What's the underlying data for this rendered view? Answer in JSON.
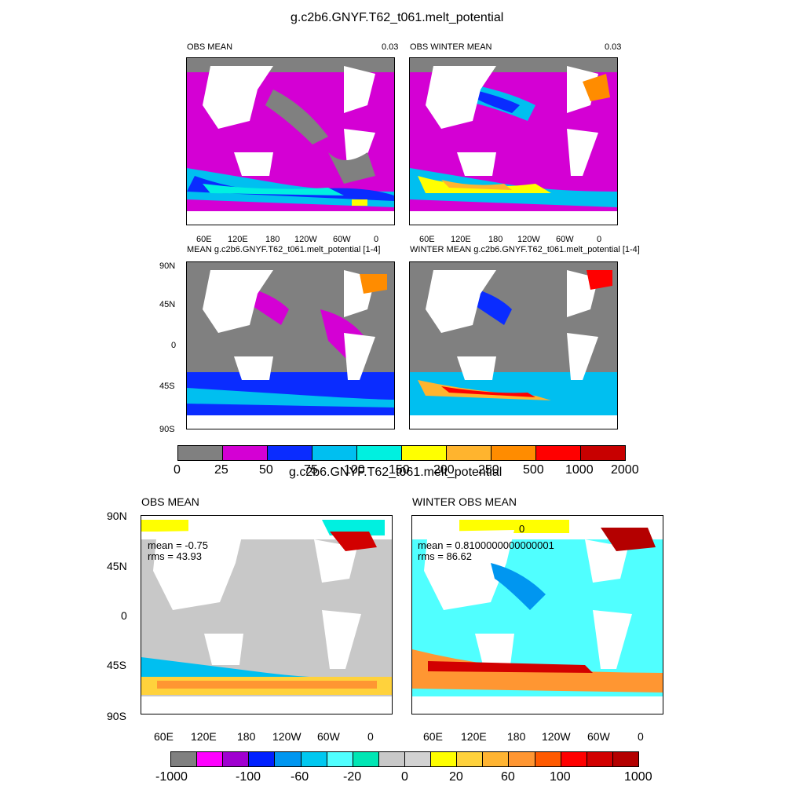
{
  "figure1": {
    "title": "g.c2b6.GNYF.T62_t061.melt_potential",
    "panels": [
      {
        "title": "OBS MEAN",
        "right_label": "0.03"
      },
      {
        "title": "OBS WINTER MEAN",
        "right_label": "0.03"
      },
      {
        "title": "MEAN g.c2b6.GNYF.T62_t061.melt_potential [1-4]",
        "right_label": ""
      },
      {
        "title": "WINTER MEAN g.c2b6.GNYF.T62_t061.melt_potential [1-4]",
        "right_label": ""
      }
    ],
    "lon_labels": [
      "60E",
      "120E",
      "180",
      "120W",
      "60W",
      "0"
    ],
    "lat_labels": [
      "90N",
      "45N",
      "0",
      "45S",
      "90S"
    ],
    "colorbar": {
      "colors": [
        "#808080",
        "#d400d4",
        "#0a2cff",
        "#00bff0",
        "#00f0e0",
        "#ffff00",
        "#ffb42e",
        "#ff8c00",
        "#ff0000",
        "#c80000"
      ],
      "labels": [
        "0",
        "25",
        "50",
        "75",
        "100",
        "150",
        "200",
        "250",
        "500",
        "1000",
        "2000"
      ]
    }
  },
  "figure2": {
    "title": "g.c2b6.GNYF.T62_t061.melt_potential",
    "panels": [
      {
        "title": "OBS MEAN",
        "mean": "mean = -0.75",
        "rms": "rms = 43.93",
        "extra": ""
      },
      {
        "title": "WINTER OBS MEAN",
        "mean": "mean = 0.8100000000000001",
        "rms": "rms = 86.62",
        "extra": "0"
      }
    ],
    "lon_labels": [
      "60E",
      "120E",
      "180",
      "120W",
      "60W",
      "0"
    ],
    "lat_labels": [
      "90N",
      "45N",
      "0",
      "45S",
      "90S"
    ],
    "colorbar": {
      "colors": [
        "#808080",
        "#ff00ff",
        "#a000d0",
        "#0020ff",
        "#0096f0",
        "#00c8f0",
        "#50ffff",
        "#00e6b4",
        "#c8c8c8",
        "#d2d2d2",
        "#ffff00",
        "#ffd23c",
        "#ffb432",
        "#ff9632",
        "#ff5a00",
        "#ff0000",
        "#d20000",
        "#b40000"
      ],
      "labels": [
        "-1000",
        "-100",
        "-60",
        "-20",
        "0",
        "20",
        "60",
        "100",
        "1000"
      ]
    }
  }
}
